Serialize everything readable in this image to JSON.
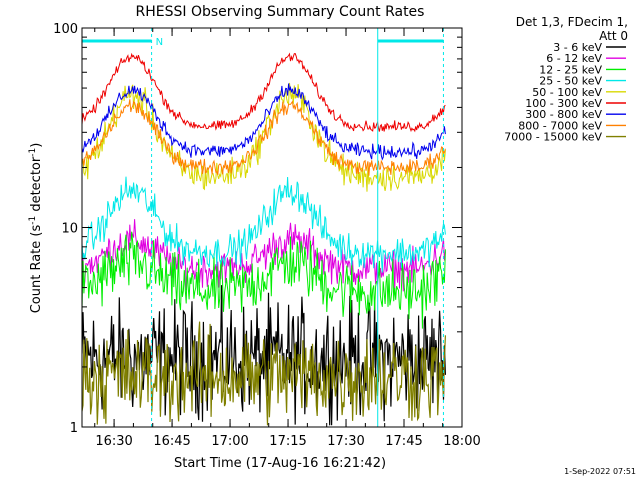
{
  "chart_data": {
    "type": "line",
    "title": "RHESSI Observing Summary Count Rates",
    "xlabel": "Start Time (17-Aug-16 16:21:42)",
    "ylabel_main": "Count Rate (s",
    "ylabel_sup1": "-1",
    "ylabel_mid": " detector",
    "ylabel_sup2": "-1",
    "ylabel_end": ")",
    "y_scale": "log",
    "ylim": [
      1,
      100
    ],
    "xlim": [
      "16:21:42",
      "18:00:00"
    ],
    "x_ticks": [
      {
        "label": "16:30",
        "min": 8.3
      },
      {
        "label": "16:45",
        "min": 23.3
      },
      {
        "label": "17:00",
        "min": 38.3
      },
      {
        "label": "17:15",
        "min": 53.3
      },
      {
        "label": "17:30",
        "min": 68.3
      },
      {
        "label": "17:45",
        "min": 83.3
      },
      {
        "label": "18:00",
        "min": 98.3
      }
    ],
    "y_ticks": [
      {
        "label": "1",
        "value": 1
      },
      {
        "label": "10",
        "value": 10
      },
      {
        "label": "100",
        "value": 100
      }
    ],
    "info": {
      "line1": "Det 1,3, FDecim 1,",
      "line2": "Att 0"
    },
    "legend_position": "right",
    "series": [
      {
        "name": "3 - 6 keV",
        "color": "#000000",
        "base": 2.2,
        "amp": 0.0,
        "noise": 0.55
      },
      {
        "name": "6 - 12 keV",
        "color": "#e000e0",
        "base": 6.2,
        "amp": 0.35,
        "noise": 0.18
      },
      {
        "name": "12 - 25 keV",
        "color": "#00ee00",
        "base": 4.8,
        "amp": 0.35,
        "noise": 0.3
      },
      {
        "name": "25 - 50 keV",
        "color": "#00e8e8",
        "base": 7.5,
        "amp": 0.75,
        "noise": 0.16
      },
      {
        "name": "50 - 100 keV",
        "color": "#d8d800",
        "base": 18.0,
        "amp": 1.0,
        "noise": 0.15
      },
      {
        "name": "100 - 300 keV",
        "color": "#ee0000",
        "base": 32.0,
        "amp": 0.85,
        "noise": 0.05
      },
      {
        "name": "300 - 800 keV",
        "color": "#0000ee",
        "base": 24.0,
        "amp": 0.75,
        "noise": 0.07
      },
      {
        "name": "800 - 7000 keV",
        "color": "#ff8000",
        "base": 20.0,
        "amp": 0.75,
        "noise": 0.08
      },
      {
        "name": "7000 - 15000 keV",
        "color": "#808000",
        "base": 1.8,
        "amp": 0.0,
        "noise": 0.45
      }
    ],
    "peaks_min": [
      13.0,
      54.0
    ],
    "night_bars": [
      {
        "start_min": 0.0,
        "end_min": 18.0,
        "label": "N"
      },
      {
        "start_min": 76.5,
        "end_min": 93.5,
        "label": ""
      }
    ],
    "footer_date": "1-Sep-2022 07:51"
  }
}
